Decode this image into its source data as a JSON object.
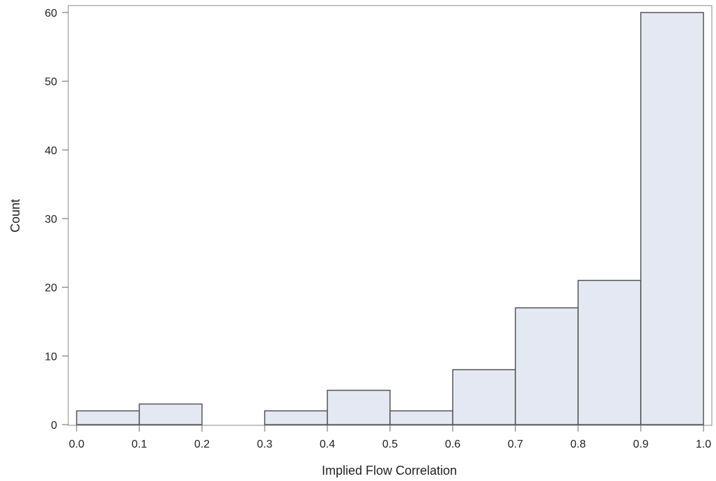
{
  "colors": {
    "bar_fill": "#e3e8f3",
    "bar_stroke": "#555555",
    "axis": "#666666",
    "text": "#222222",
    "frame": "#888888"
  },
  "chart_data": {
    "type": "bar",
    "title": "",
    "xlabel": "Implied Flow Correlation",
    "ylabel": "Count",
    "bins": [
      {
        "start": 0.0,
        "end": 0.1,
        "count": 2
      },
      {
        "start": 0.1,
        "end": 0.2,
        "count": 3
      },
      {
        "start": 0.3,
        "end": 0.4,
        "count": 2
      },
      {
        "start": 0.4,
        "end": 0.5,
        "count": 5
      },
      {
        "start": 0.5,
        "end": 0.6,
        "count": 2
      },
      {
        "start": 0.6,
        "end": 0.7,
        "count": 8
      },
      {
        "start": 0.7,
        "end": 0.8,
        "count": 17
      },
      {
        "start": 0.8,
        "end": 0.9,
        "count": 21
      },
      {
        "start": 0.9,
        "end": 1.0,
        "count": 60
      }
    ],
    "xlim": [
      0.0,
      1.0
    ],
    "ylim": [
      0,
      60
    ],
    "xticks": [
      "0.0",
      "0.1",
      "0.2",
      "0.3",
      "0.4",
      "0.5",
      "0.6",
      "0.7",
      "0.8",
      "0.9",
      "1.0"
    ],
    "yticks": [
      "0",
      "10",
      "20",
      "30",
      "40",
      "50",
      "60"
    ],
    "grid": false,
    "legend": "none"
  }
}
